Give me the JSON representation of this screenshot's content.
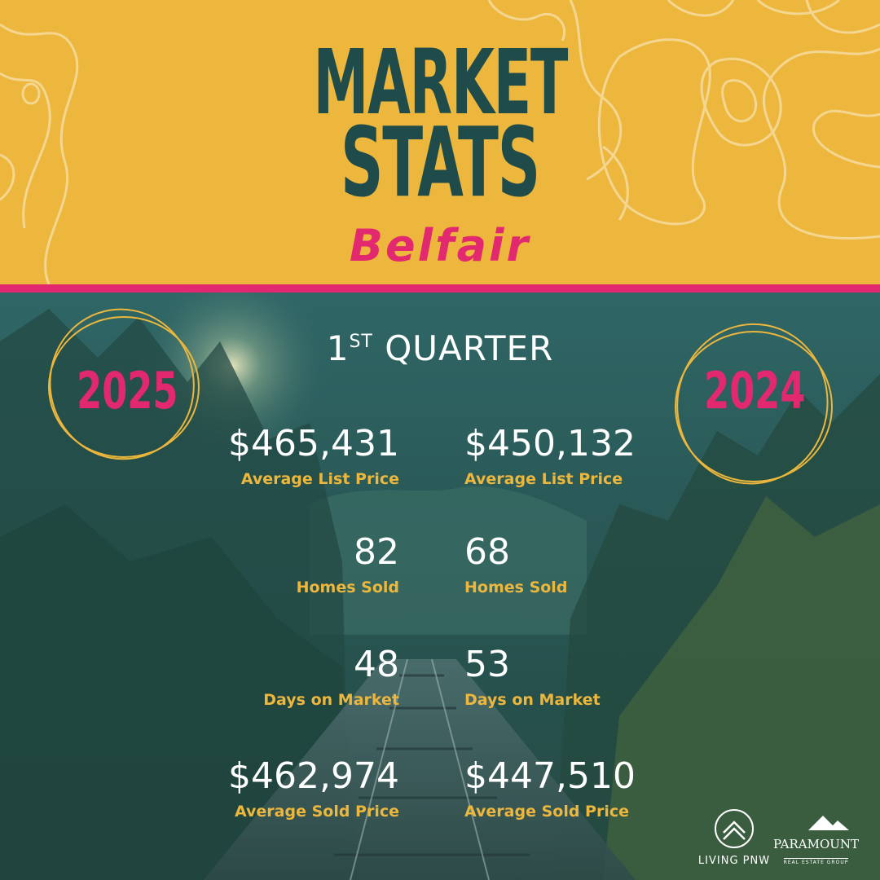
{
  "header": {
    "title_line1": "MARKET",
    "title_line2": "STATS",
    "city": "Belfair"
  },
  "period": {
    "ordinal_number": "1",
    "ordinal_suffix": "ST",
    "label": "QUARTER"
  },
  "years": {
    "current": "2025",
    "previous": "2024"
  },
  "stats": [
    {
      "current_value": "$465,431",
      "previous_value": "$450,132",
      "label": "Average List Price"
    },
    {
      "current_value": "82",
      "previous_value": "68",
      "label": "Homes Sold"
    },
    {
      "current_value": "48",
      "previous_value": "53",
      "label": "Days on Market"
    },
    {
      "current_value": "$462,974",
      "previous_value": "$447,510",
      "label": "Average Sold Price"
    }
  ],
  "logos": {
    "living_pnw": "LIVING PNW",
    "paramount": "PARAMOUNT",
    "paramount_sub": "REAL ESTATE GROUP"
  },
  "colors": {
    "banner_yellow": "#ecb73c",
    "title_teal": "#1f4c4a",
    "accent_pink": "#e2286e",
    "label_gold": "#ecb73c",
    "overlay_teal": "#2a5a58"
  }
}
